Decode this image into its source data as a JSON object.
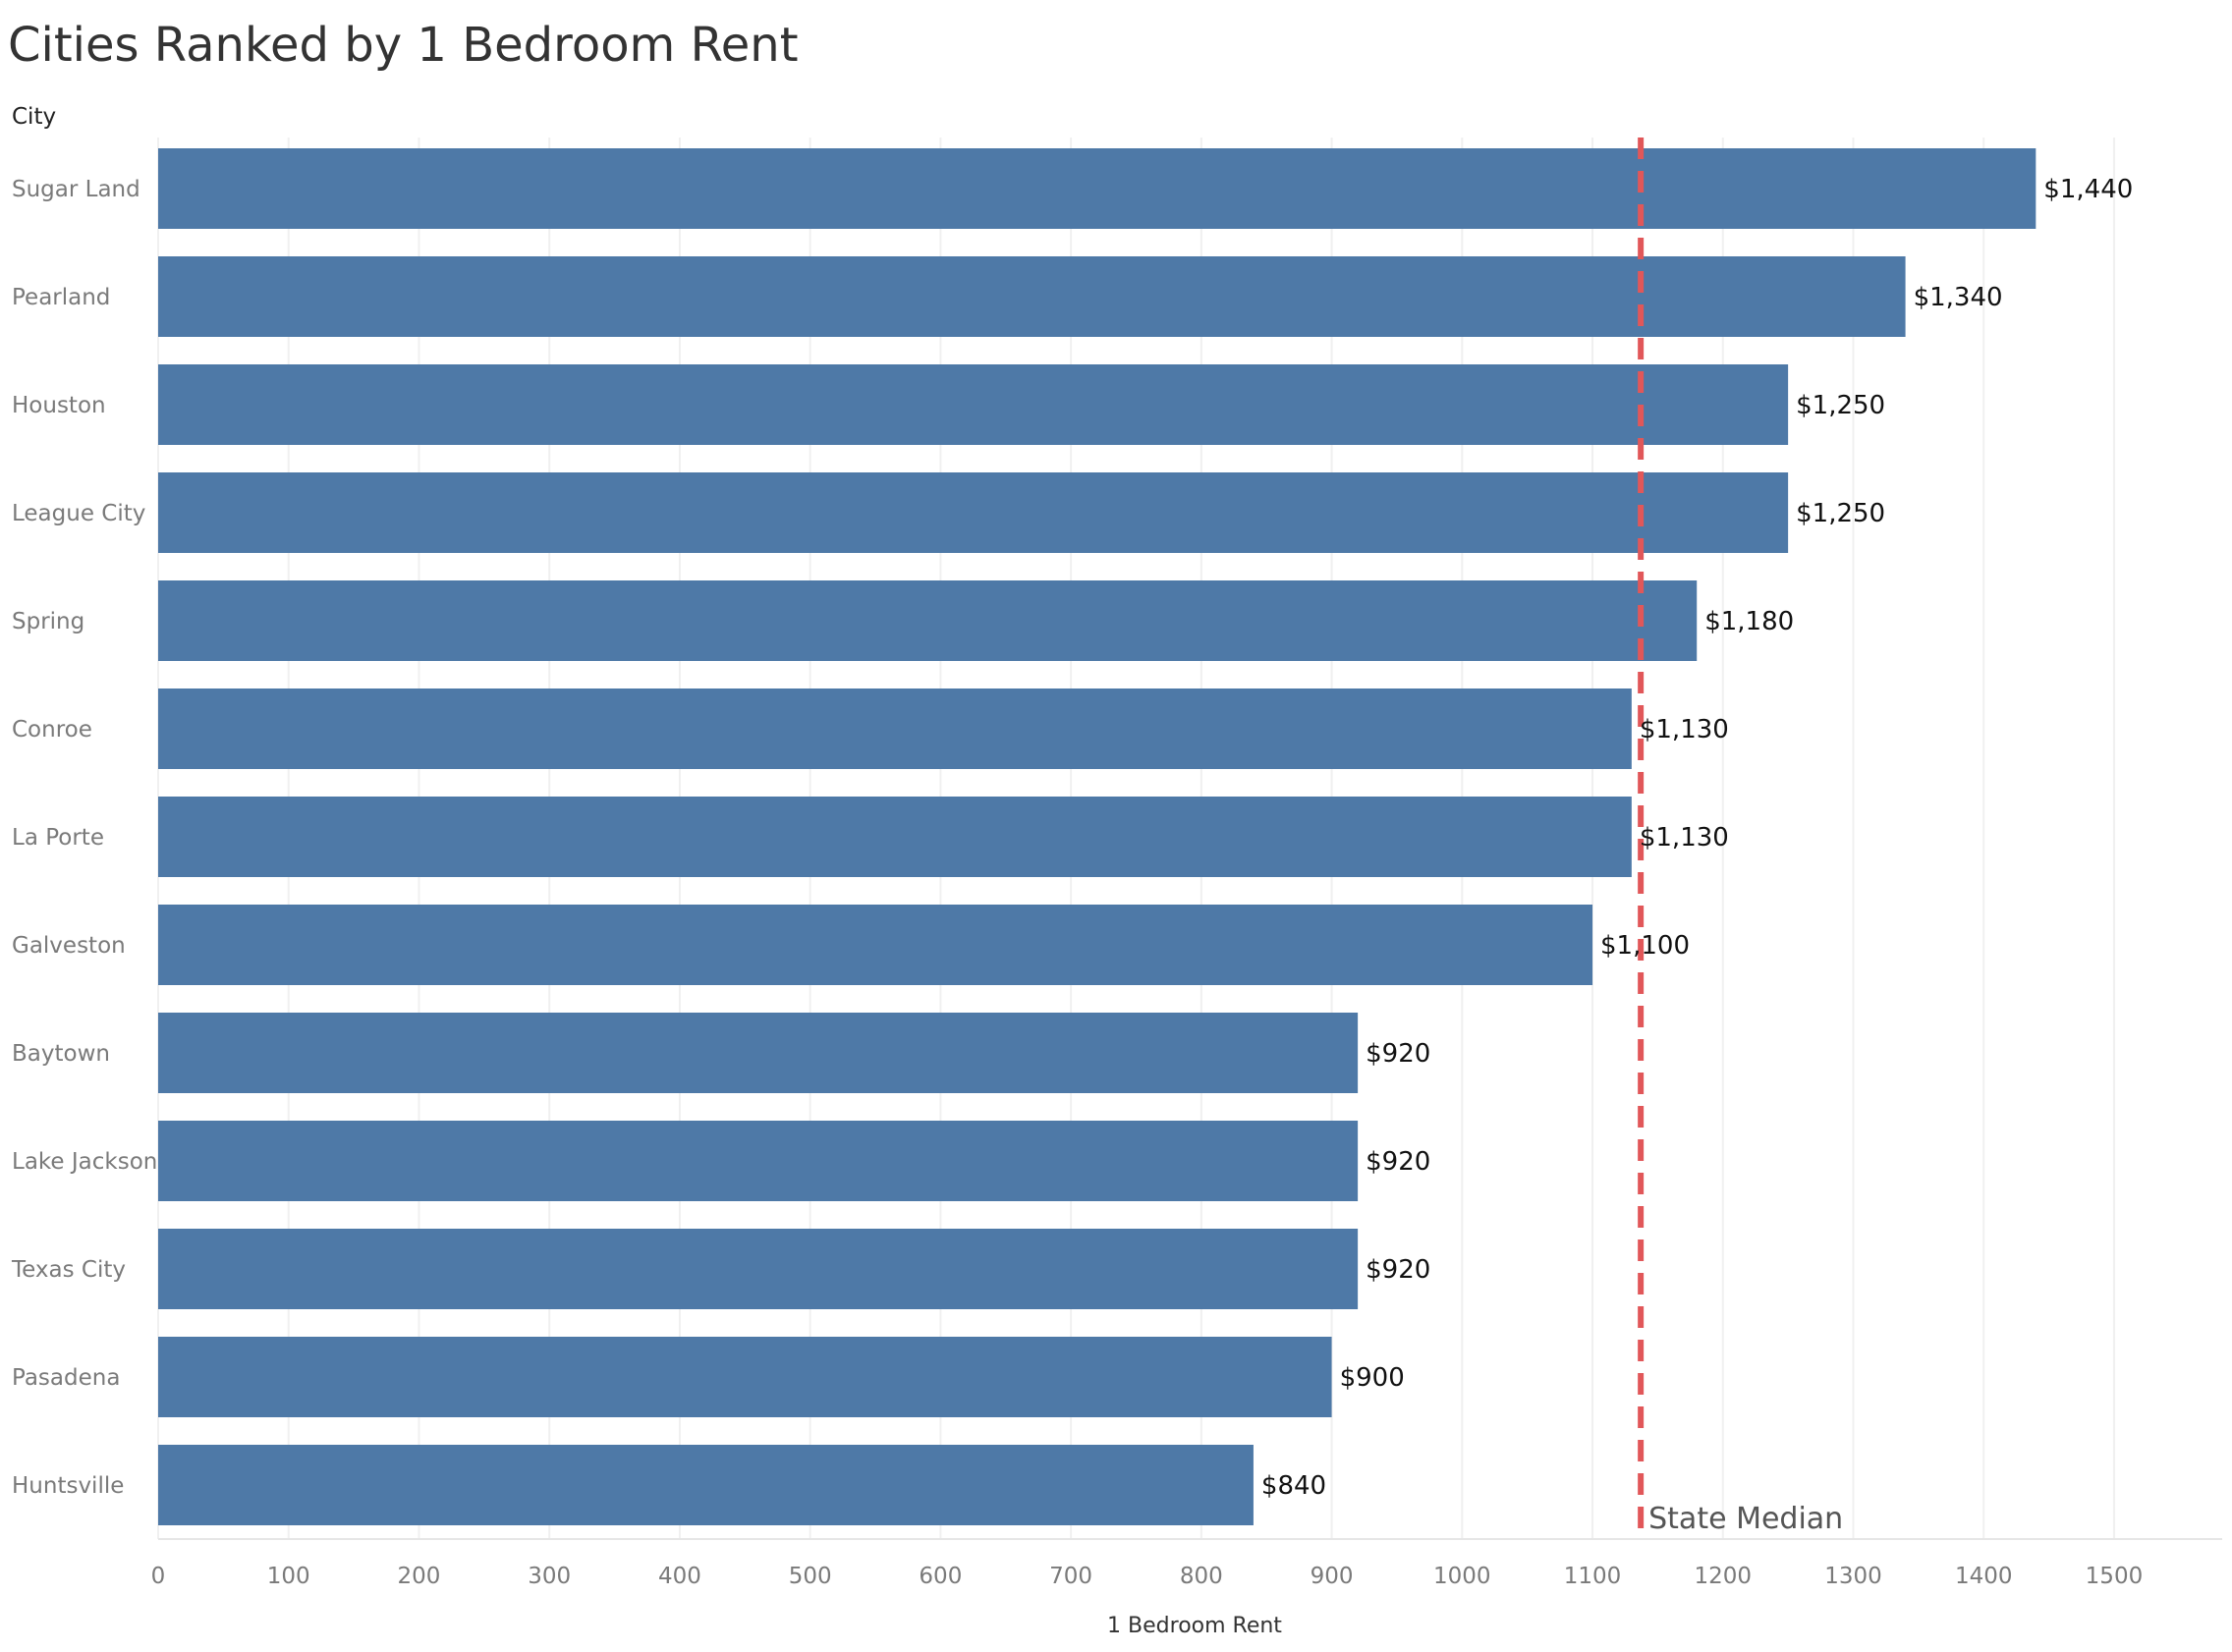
{
  "chart_data": {
    "type": "bar",
    "orientation": "horizontal",
    "title": "Cities Ranked by 1 Bedroom Rent",
    "category_axis_title": "City",
    "xlabel": "1 Bedroom Rent",
    "categories": [
      "Sugar Land",
      "Pearland",
      "Houston",
      "League City",
      "Spring",
      "Conroe",
      "La Porte",
      "Galveston",
      "Baytown",
      "Lake Jackson",
      "Texas City",
      "Pasadena",
      "Huntsville"
    ],
    "values": [
      1440,
      1340,
      1250,
      1250,
      1180,
      1130,
      1130,
      1100,
      920,
      920,
      920,
      900,
      840
    ],
    "value_labels": [
      "$1,440",
      "$1,340",
      "$1,250",
      "$1,250",
      "$1,180",
      "$1,130",
      "$1,130",
      "$1,100",
      "$920",
      "$920",
      "$920",
      "$900",
      "$840"
    ],
    "xlim": [
      0,
      1500
    ],
    "xticks": [
      "0",
      "100",
      "200",
      "300",
      "400",
      "500",
      "600",
      "700",
      "800",
      "900",
      "1000",
      "1100",
      "1200",
      "1300",
      "1400",
      "1500"
    ],
    "reference_line": {
      "label": "State Median",
      "value": 1137,
      "style": "dashed"
    },
    "grid": "vertical",
    "colors": {
      "bar": "#4e79a7",
      "reference_line": "#e15759"
    }
  }
}
